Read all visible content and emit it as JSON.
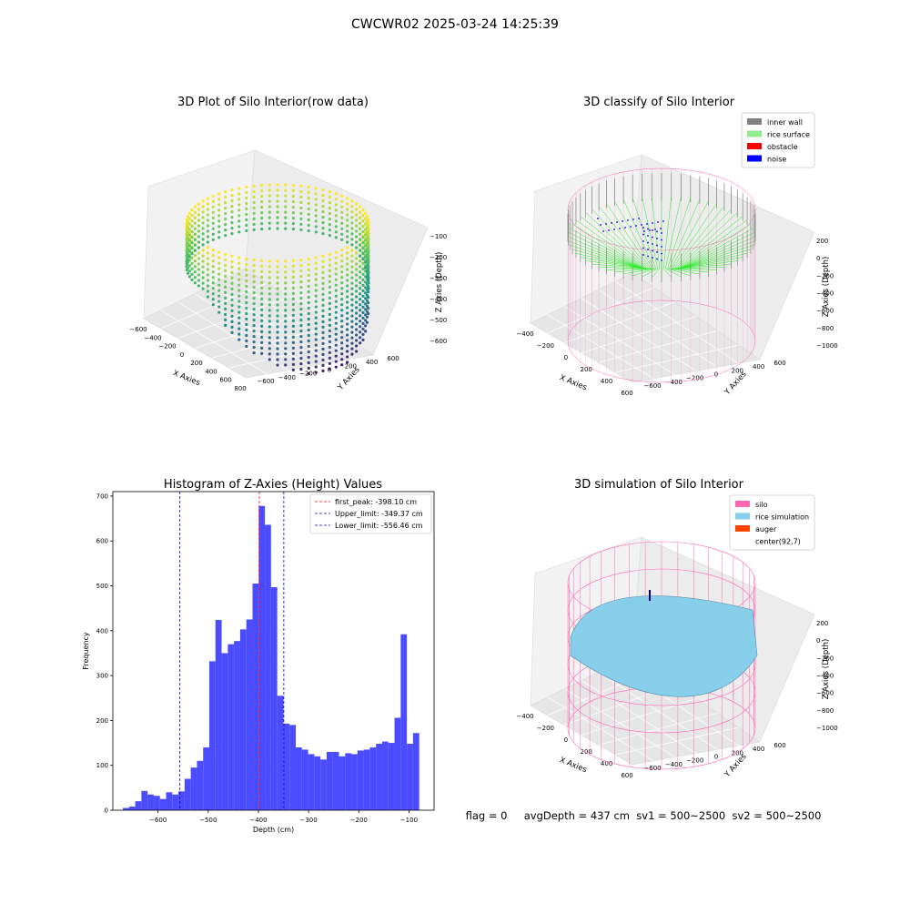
{
  "figure": {
    "suptitle": "CWCWR02 2025-03-24 14:25:39",
    "status_line": "flag = 0     avgDepth = 437 cm  sv1 = 500~2500  sv2 = 500~2500"
  },
  "colors": {
    "histogram_bar": "#4b4bff",
    "first_peak_line": "#ff0000",
    "limit_line": "#0000cc",
    "inner_wall": "#808080",
    "rice_surface": "#90ee90",
    "obstacle": "#ff0000",
    "noise": "#0000ff",
    "silo": "#ff69b4",
    "rice_simulation": "#87ceeb",
    "auger": "#ff4500"
  },
  "chart_data": [
    {
      "type": "scatter",
      "title": "3D Plot of Silo Interior(row data)",
      "xlabel": "X Axies",
      "ylabel": "Y Axies",
      "zlabel": "Z Axies (Depth)",
      "xticks": [
        "−600",
        "−400",
        "−200",
        "0",
        "200",
        "400",
        "600",
        "800"
      ],
      "yticks": [
        "−600",
        "−400",
        "−200",
        "0",
        "200",
        "400",
        "600"
      ],
      "zticks": [
        "−100",
        "−200",
        "−300",
        "−400",
        "−500",
        "−600"
      ],
      "colormap": "viridis"
    },
    {
      "type": "scatter",
      "title": "3D classify of Silo Interior",
      "xlabel": "X Axies",
      "ylabel": "Y Axies",
      "zlabel": "Z Axies (Depth)",
      "xticks": [
        "−400",
        "−200",
        "0",
        "200",
        "400",
        "600"
      ],
      "yticks": [
        "−600",
        "−400",
        "−200",
        "0",
        "200",
        "400",
        "600"
      ],
      "zticks": [
        "200",
        "0",
        "−200",
        "−400",
        "−600",
        "−800",
        "−1000"
      ],
      "legend": [
        {
          "label": "inner wall",
          "color": "#808080"
        },
        {
          "label": "rice surface",
          "color": "#90ee90"
        },
        {
          "label": "obstacle",
          "color": "#ff0000"
        },
        {
          "label": "noise",
          "color": "#0000ff"
        }
      ]
    },
    {
      "type": "bar",
      "title": "Histogram of Z-Axies (Height) Values",
      "xlabel": "Depth (cm)",
      "ylabel": "Frequency",
      "xlim": [
        -690,
        -50
      ],
      "ylim": [
        0,
        710
      ],
      "xticks": [
        -600,
        -500,
        -400,
        -300,
        -200,
        -100
      ],
      "xtick_labels": [
        "−600",
        "−500",
        "−400",
        "−300",
        "−200",
        "−100"
      ],
      "yticks": [
        0,
        100,
        200,
        300,
        400,
        500,
        600,
        700
      ],
      "bin_start": -670,
      "bin_width": 12.3,
      "values": [
        5,
        8,
        20,
        43,
        35,
        32,
        25,
        40,
        35,
        42,
        70,
        95,
        110,
        140,
        332,
        424,
        350,
        370,
        377,
        403,
        425,
        505,
        678,
        636,
        497,
        255,
        193,
        190,
        140,
        135,
        125,
        120,
        113,
        130,
        130,
        120,
        127,
        125,
        133,
        135,
        140,
        148,
        153,
        150,
        206,
        392,
        148,
        172
      ],
      "vlines": [
        {
          "name": "first_peak",
          "x": -398.1,
          "label": "first_peak: -398.10 cm",
          "color": "#ff0000"
        },
        {
          "name": "upper_limit",
          "x": -349.37,
          "label": "Upper_limit: -349.37 cm",
          "color": "#0000cc"
        },
        {
          "name": "lower_limit",
          "x": -556.46,
          "label": "Lower_limit: -556.46 cm",
          "color": "#0000cc"
        }
      ],
      "legend_position": "top-right"
    },
    {
      "type": "area",
      "title": "3D simulation of Silo Interior",
      "xlabel": "X Axies",
      "ylabel": "Y Axies",
      "zlabel": "Z Axies (Depth)",
      "xticks": [
        "−400",
        "−200",
        "0",
        "200",
        "400",
        "600"
      ],
      "yticks": [
        "−600",
        "−400",
        "−200",
        "0",
        "200",
        "400",
        "600"
      ],
      "zticks": [
        "200",
        "0",
        "−200",
        "−400",
        "−600",
        "−800",
        "−1000"
      ],
      "legend": [
        {
          "label": "silo",
          "color": "#ff69b4"
        },
        {
          "label": "rice simulation",
          "color": "#87ceeb"
        },
        {
          "label": "auger",
          "color": "#ff4500"
        },
        {
          "label": "center(92,7)",
          "color": ""
        }
      ]
    }
  ]
}
